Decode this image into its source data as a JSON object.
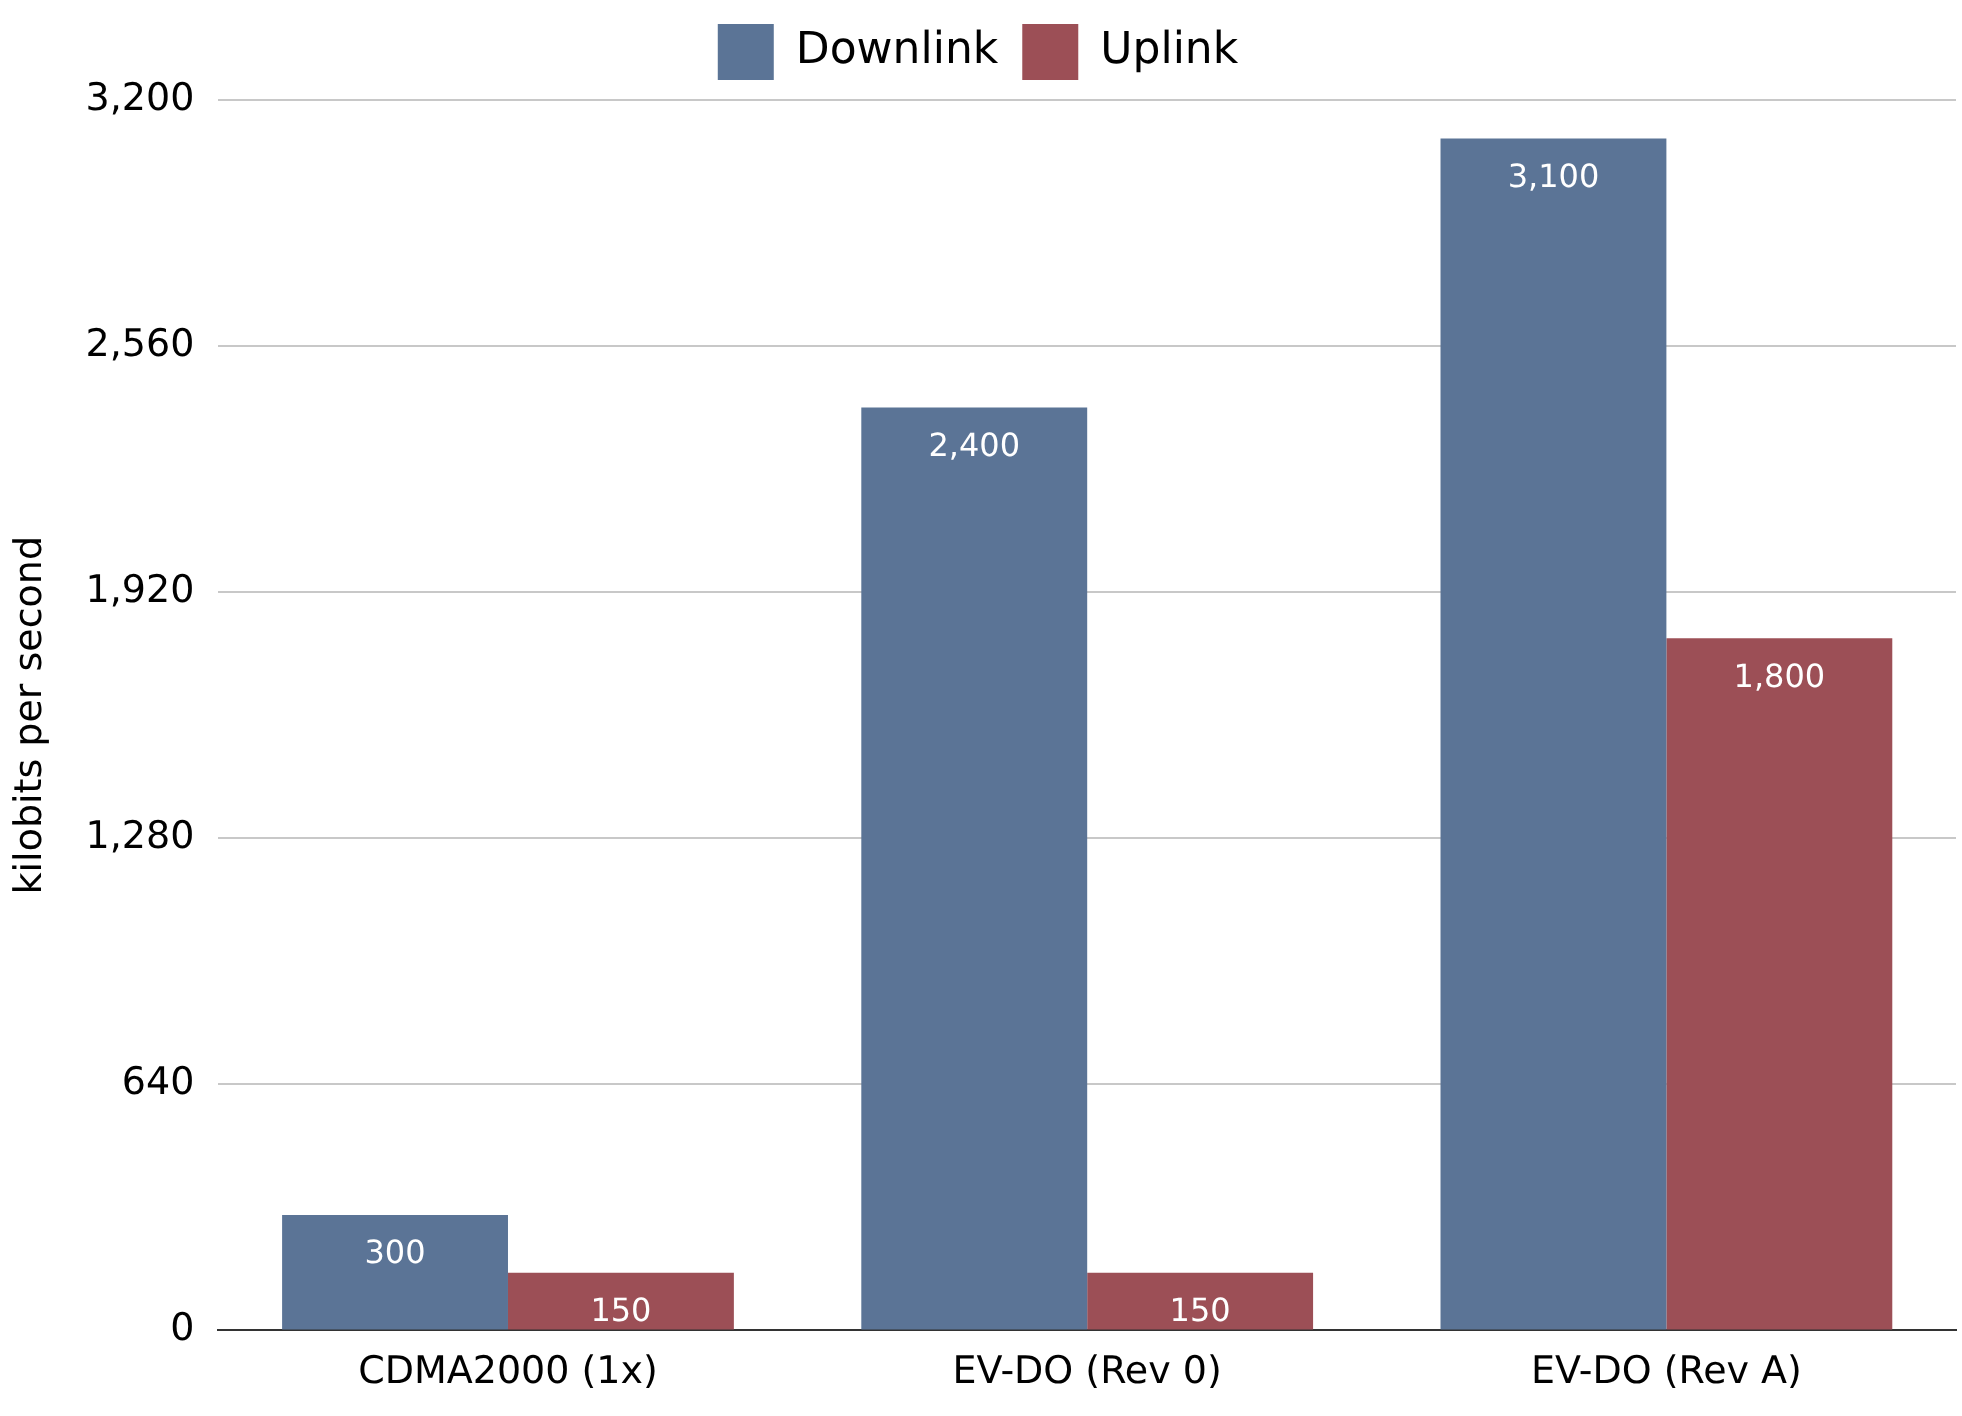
{
  "chart_data": {
    "type": "bar",
    "ylabel": "kilobits per second",
    "categories": [
      "CDMA2000 (1x)",
      "EV-DO (Rev 0)",
      "EV-DO (Rev A)"
    ],
    "series": [
      {
        "name": "Downlink",
        "color": "#5b7496",
        "values": [
          300,
          2400,
          3100
        ],
        "value_labels": [
          "300",
          "2,400",
          "3,100"
        ]
      },
      {
        "name": "Uplink",
        "color": "#9c4f56",
        "values": [
          150,
          150,
          1800
        ],
        "value_labels": [
          "150",
          "150",
          "1,800"
        ]
      }
    ],
    "ylim": [
      0,
      3200
    ],
    "yticks": [
      0,
      640,
      {
        "value": 1280,
        "label": "1,280"
      },
      {
        "value": 1920,
        "label": "1,920"
      },
      {
        "value": 2560,
        "label": "2,560"
      },
      {
        "value": 3200,
        "label": "3,200"
      }
    ],
    "grid": "y",
    "legend": "top"
  }
}
